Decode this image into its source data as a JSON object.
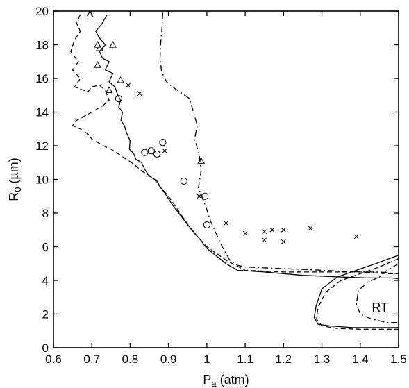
{
  "chart_data": {
    "type": "line",
    "title": "",
    "xlabel": {
      "main": "P",
      "sub": "a",
      "rest": " (atm)"
    },
    "ylabel": {
      "main": "R",
      "sub": "0",
      "rest": " (µm)"
    },
    "xlim": [
      0.6,
      1.5
    ],
    "ylim": [
      0,
      20
    ],
    "xticks": [
      0.6,
      0.7,
      0.8,
      0.9,
      1.0,
      1.1,
      1.2,
      1.3,
      1.4,
      1.5
    ],
    "xtick_labels": [
      "0.6",
      "0.7",
      "0.8",
      "0.9",
      "1",
      "1.1",
      "1.2",
      "1.3",
      "1.4",
      "1.5"
    ],
    "yticks": [
      0,
      2,
      4,
      6,
      8,
      10,
      12,
      14,
      16,
      18,
      20
    ],
    "ytick_labels": [
      "0",
      "2",
      "4",
      "6",
      "8",
      "10",
      "12",
      "14",
      "16",
      "18",
      "20"
    ],
    "grid": false,
    "legend": "none",
    "annotations": [
      {
        "text": "RT",
        "x": 1.43,
        "y": 2.4
      }
    ],
    "series": [
      {
        "style": "solid",
        "x": [
          0.74,
          0.725,
          0.71,
          0.72,
          0.735,
          0.72,
          0.728,
          0.745,
          0.735,
          0.755,
          0.745,
          0.76,
          0.768,
          0.775,
          0.77,
          0.78,
          0.776,
          0.785,
          0.79,
          0.8,
          0.798,
          0.81,
          0.815,
          0.83,
          0.838,
          0.85,
          0.87,
          0.88,
          0.89,
          0.91,
          0.93,
          0.95,
          0.98,
          1.0,
          1.05,
          1.08,
          1.15,
          1.25,
          1.35,
          1.42,
          1.48,
          1.5
        ],
        "y": [
          19.8,
          19.2,
          18.8,
          18.4,
          18.0,
          17.6,
          17.2,
          17.0,
          16.5,
          16.3,
          15.8,
          15.5,
          15.0,
          14.7,
          14.3,
          14.0,
          13.5,
          13.2,
          12.8,
          12.3,
          11.8,
          11.5,
          11.2,
          11.0,
          10.6,
          10.2,
          9.9,
          9.5,
          9.2,
          8.5,
          7.9,
          7.3,
          6.5,
          5.9,
          5.0,
          4.6,
          4.5,
          4.3,
          4.2,
          4.15,
          4.15,
          4.1
        ]
      },
      {
        "style": "dashed",
        "x": [
          0.67,
          0.66,
          0.67,
          0.655,
          0.645,
          0.665,
          0.65,
          0.67,
          0.655,
          0.69,
          0.7,
          0.72,
          0.735,
          0.74,
          0.745,
          0.73,
          0.7,
          0.66,
          0.65,
          0.67,
          0.69,
          0.7,
          0.73,
          0.75,
          0.77,
          0.79,
          0.81,
          0.83,
          0.86,
          0.88,
          0.9,
          0.93,
          0.96,
          1.0,
          1.05,
          1.1,
          1.2,
          1.3,
          1.4,
          1.47,
          1.5
        ],
        "y": [
          19.8,
          19.3,
          18.8,
          18.3,
          17.6,
          17.0,
          16.5,
          16.0,
          15.5,
          15.2,
          15.5,
          15.6,
          15.3,
          15.0,
          14.7,
          14.4,
          14.0,
          13.5,
          13.2,
          13.0,
          12.7,
          12.4,
          12.0,
          11.8,
          11.5,
          11.2,
          10.9,
          10.5,
          10.1,
          9.5,
          9.0,
          8.0,
          7.0,
          6.0,
          5.2,
          4.6,
          4.5,
          4.5,
          4.5,
          4.4,
          4.4
        ]
      },
      {
        "style": "dashdot",
        "x": [
          0.885,
          0.883,
          0.88,
          0.878,
          0.882,
          0.895,
          0.91,
          0.93,
          0.955,
          0.965,
          0.975,
          0.968,
          0.98,
          0.985,
          0.978,
          0.99,
          1.0,
          1.01,
          1.02,
          1.04,
          1.06,
          1.08,
          1.1,
          1.2,
          1.3,
          1.4,
          1.45,
          1.5
        ],
        "y": [
          19.9,
          19.0,
          18.2,
          17.2,
          16.4,
          15.8,
          15.5,
          15.2,
          14.8,
          14.0,
          13.2,
          12.4,
          11.5,
          10.5,
          9.5,
          8.8,
          8.2,
          7.5,
          7.0,
          6.0,
          5.2,
          4.9,
          4.8,
          4.7,
          4.6,
          4.5,
          4.5,
          4.4
        ]
      },
      {
        "style": "solid",
        "x": [
          1.5,
          1.44,
          1.39,
          1.34,
          1.3,
          1.285,
          1.28,
          1.29,
          1.32,
          1.38,
          1.45,
          1.5
        ],
        "y": [
          5.5,
          5.0,
          4.6,
          4.2,
          3.5,
          2.5,
          1.8,
          1.4,
          1.3,
          1.2,
          1.2,
          1.2
        ]
      },
      {
        "style": "dashed",
        "x": [
          1.5,
          1.45,
          1.4,
          1.35,
          1.31,
          1.29,
          1.286,
          1.3,
          1.34,
          1.4,
          1.46,
          1.5
        ],
        "y": [
          5.3,
          4.8,
          4.4,
          4.0,
          3.3,
          2.4,
          1.7,
          1.3,
          1.15,
          1.1,
          1.1,
          1.1
        ]
      },
      {
        "style": "dashdot",
        "x": [
          1.5,
          1.47,
          1.45,
          1.42,
          1.395,
          1.39,
          1.4,
          1.43,
          1.47,
          1.5
        ],
        "y": [
          5.0,
          4.6,
          4.2,
          3.9,
          3.4,
          2.6,
          2.0,
          1.7,
          1.5,
          1.5
        ]
      }
    ],
    "markers": {
      "triangle": [
        [
          0.695,
          19.8
        ],
        [
          0.715,
          18.0
        ],
        [
          0.72,
          17.8
        ],
        [
          0.755,
          18.0
        ],
        [
          0.715,
          16.8
        ],
        [
          0.775,
          15.9
        ],
        [
          0.745,
          15.3
        ],
        [
          0.985,
          11.1
        ]
      ],
      "circle": [
        [
          0.77,
          14.8
        ],
        [
          0.838,
          11.6
        ],
        [
          0.855,
          11.7
        ],
        [
          0.87,
          11.5
        ],
        [
          0.885,
          12.2
        ],
        [
          0.94,
          9.9
        ],
        [
          0.995,
          9.0
        ],
        [
          1.0,
          7.3
        ]
      ],
      "cross": [
        [
          0.795,
          15.6
        ],
        [
          0.825,
          15.1
        ],
        [
          0.89,
          11.7
        ],
        [
          0.98,
          9.0
        ],
        [
          1.05,
          7.4
        ],
        [
          1.1,
          6.8
        ],
        [
          1.15,
          6.9
        ],
        [
          1.15,
          6.4
        ],
        [
          1.17,
          7.0
        ],
        [
          1.2,
          7.0
        ],
        [
          1.2,
          6.3
        ],
        [
          1.27,
          7.1
        ],
        [
          1.39,
          6.6
        ]
      ]
    }
  }
}
